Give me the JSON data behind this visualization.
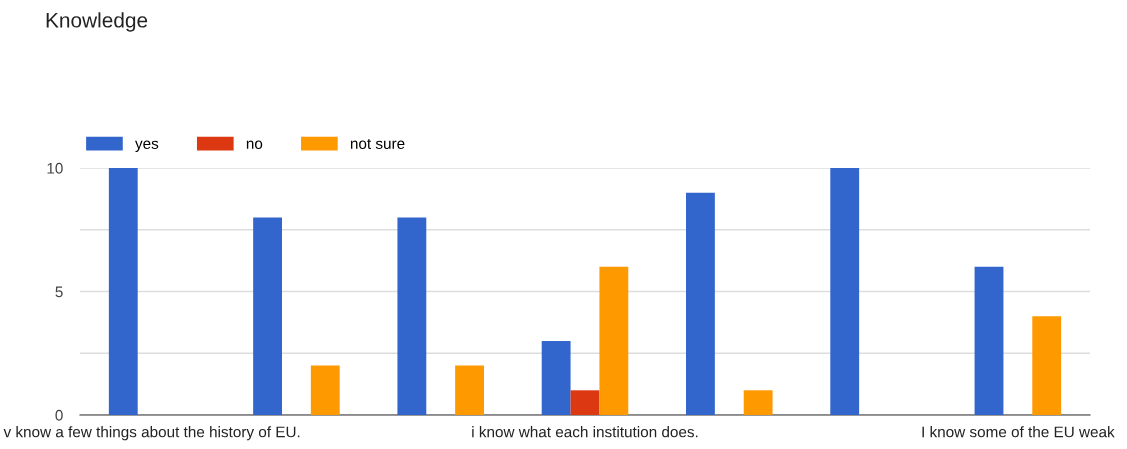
{
  "chart_data": {
    "type": "bar",
    "title": "Knowledge",
    "categories": [
      "v know a few things about the history of EU.",
      null,
      null,
      "i know what each institution does.",
      null,
      null,
      "I know some of the EU weak"
    ],
    "series": [
      {
        "name": "yes",
        "color": "#3366cc",
        "values": [
          10,
          8,
          8,
          3,
          9,
          10,
          6
        ]
      },
      {
        "name": "no",
        "color": "#dc3912",
        "values": [
          0,
          0,
          0,
          1,
          0,
          0,
          0
        ]
      },
      {
        "name": "not sure",
        "color": "#ff9900",
        "values": [
          0,
          2,
          2,
          6,
          1,
          0,
          4
        ]
      }
    ],
    "ylim": [
      0,
      10
    ],
    "yticks": [
      0,
      {
        "value": 2.5,
        "label": null
      },
      5,
      {
        "value": 7.5,
        "label": null
      },
      10
    ],
    "grid": "y",
    "legend": "top left"
  }
}
